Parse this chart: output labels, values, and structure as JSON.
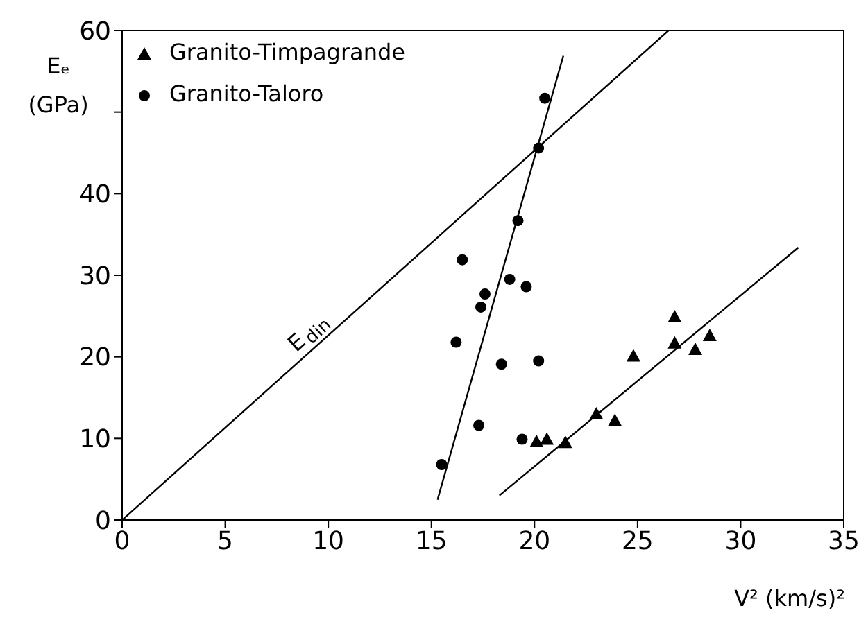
{
  "chart_data": {
    "type": "scatter",
    "xlabel": "V² (km/s)²",
    "ylabel": "Eₑ (GPa)",
    "xlim": [
      0,
      35
    ],
    "xticks": [
      0,
      5,
      10,
      15,
      20,
      25,
      30,
      35
    ],
    "ylim": [
      0,
      60
    ],
    "yticks": [
      0,
      10,
      20,
      30,
      40,
      {
        "value": 50,
        "label": null
      },
      60
    ],
    "grid": false,
    "legend": "top left",
    "annotations": [
      {
        "text": "E$_{din}$",
        "x": 9.5,
        "y": 21.5
      }
    ],
    "series": [
      {
        "name": "Granito-Timpagrande",
        "marker": "triangle",
        "color": "#000000",
        "x": [
          26.8,
          26.8,
          24.8,
          27.8,
          28.5,
          23.0,
          23.9,
          20.1,
          20.6,
          21.5
        ],
        "values": [
          24.9,
          21.7,
          20.1,
          20.9,
          22.6,
          13.0,
          12.2,
          9.6,
          9.9,
          9.5
        ]
      },
      {
        "name": "Granito-Taloro",
        "marker": "circle",
        "color": "#000000",
        "x": [
          20.5,
          20.2,
          19.2,
          16.5,
          18.8,
          19.6,
          17.6,
          17.4,
          16.2,
          18.4,
          20.2,
          17.3,
          19.4,
          15.5
        ],
        "values": [
          51.7,
          45.6,
          36.7,
          31.9,
          29.5,
          28.6,
          27.7,
          26.1,
          21.8,
          19.1,
          19.5,
          11.6,
          9.9,
          6.8
        ]
      },
      {
        "type": "line",
        "color": "#000000",
        "x": [
          0,
          26.5
        ],
        "values": [
          0,
          60
        ]
      },
      {
        "type": "line",
        "color": "#000000",
        "x": [
          15.3,
          21.4
        ],
        "values": [
          2.5,
          56.9
        ]
      },
      {
        "type": "line",
        "color": "#000000",
        "x": [
          18.3,
          32.8
        ],
        "values": [
          3.0,
          33.4
        ]
      }
    ]
  }
}
